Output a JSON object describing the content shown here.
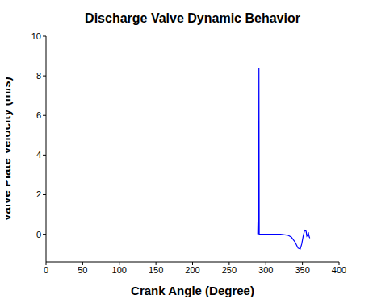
{
  "chart_data": {
    "type": "line",
    "title": "Discharge Valve Dynamic Behavior",
    "x_label": "Crank Angle (Degree)",
    "y_label": "Valve Plate Velocity (m/s)",
    "x": [
      289,
      289.3,
      289.6,
      290,
      290.3,
      290.6,
      291,
      300,
      320,
      330,
      335,
      340,
      344,
      347,
      349,
      351,
      353,
      355,
      356,
      357,
      358,
      359,
      360
    ],
    "values": [
      0,
      0.6,
      0,
      5.7,
      0,
      8.4,
      0,
      0,
      0,
      -0.05,
      -0.15,
      -0.4,
      -0.7,
      -0.75,
      -0.5,
      -0.1,
      0.2,
      0.15,
      -0.1,
      -0.05,
      0.1,
      -0.1,
      -0.2
    ],
    "color": "#0000ff",
    "xlim": [
      0,
      400
    ],
    "xticks": [
      0,
      50,
      100,
      150,
      200,
      250,
      300,
      350,
      400
    ],
    "ylim": [
      -1.4,
      10
    ],
    "yticks": [
      0,
      2,
      4,
      6,
      8,
      10
    ],
    "grid": false
  }
}
